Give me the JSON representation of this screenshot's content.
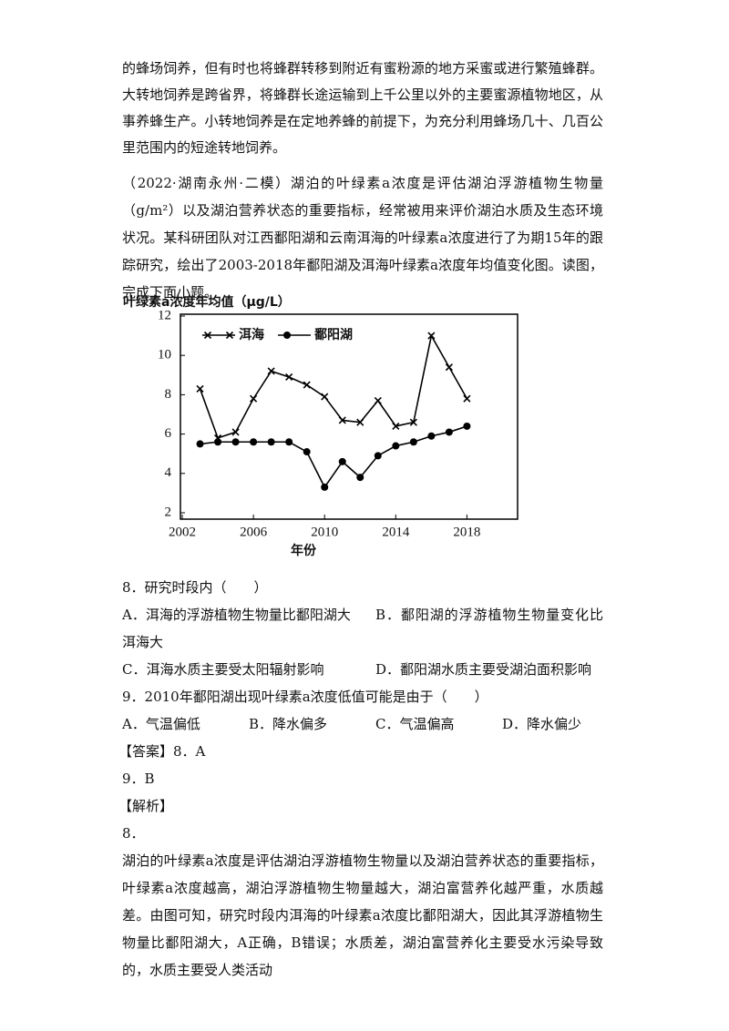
{
  "paragraphs": [
    "的蜂场饲养，但有时也将蜂群转移到附近有蜜粉源的地方采蜜或进行繁殖蜂群。大转地饲养是跨省界，将蜂群长途运输到上千公里以外的主要蜜源植物地区，从事养蜂生产。小转地饲养是在定地养蜂的前提下，为充分利用蜂场几十、几百公里范围内的短途转地饲养。",
    "（2022·湖南永州·二模）湖泊的叶绿素a浓度是评估湖泊浮游植物生物量（g/m²）以及湖泊营养状态的重要指标，经常被用来评价湖泊水质及生态环境状况。某科研团队对江西鄱阳湖和云南洱海的叶绿素a浓度进行了为期15年的跟踪研究，绘出了2003-2018年鄱阳湖及洱海叶绿素a浓度年均值变化图。读图，完成下面小题。"
  ],
  "chart_data": {
    "type": "line",
    "y_label": "叶绿素a浓度年均值（μg/L）",
    "x_label": "年份",
    "x": [
      2003,
      2004,
      2005,
      2006,
      2007,
      2008,
      2009,
      2010,
      2011,
      2012,
      2013,
      2014,
      2015,
      2016,
      2017,
      2018
    ],
    "series": [
      {
        "name": "洱海",
        "color": "#000000",
        "marker": "x",
        "values": [
          8.3,
          5.8,
          6.1,
          7.8,
          9.2,
          8.9,
          8.5,
          7.9,
          6.7,
          6.6,
          7.7,
          6.4,
          6.6,
          11.0,
          9.4,
          7.8
        ]
      },
      {
        "name": "鄱阳湖",
        "color": "#000000",
        "marker": "circle",
        "values": [
          5.5,
          5.6,
          5.6,
          5.6,
          5.6,
          5.6,
          5.1,
          3.3,
          4.6,
          3.8,
          4.9,
          5.4,
          5.6,
          5.9,
          6.1,
          6.4
        ]
      }
    ],
    "xlim": [
      2002,
      2021
    ],
    "xticks": [
      2002,
      2006,
      2010,
      2014,
      2018
    ],
    "ylim": [
      2,
      12
    ],
    "yticks": [
      2,
      4,
      6,
      8,
      10,
      12
    ],
    "legend": "upper left",
    "grid": false
  },
  "questions": [
    {
      "stem": "8．研究时段内（　　）",
      "options": [
        "A．洱海的浮游植物生物量比鄱阳湖大",
        "B．鄱阳湖的浮游植物生物量变化比洱海大",
        "C．洱海水质主要受太阳辐射影响",
        "D．鄱阳湖水质主要受湖泊面积影响"
      ]
    },
    {
      "stem": "9．2010年鄱阳湖出现叶绿素a浓度低值可能是由于（　　）",
      "options": [
        "A．气温偏低",
        "B．降水偏多",
        "C．气温偏高",
        "D．降水偏少"
      ]
    }
  ],
  "answer": {
    "label": "【答案】",
    "lines": [
      "8．A",
      "9．B"
    ]
  },
  "analysis": {
    "label": "【解析】",
    "number": "8．",
    "text": "湖泊的叶绿素a浓度是评估湖泊浮游植物生物量以及湖泊营养状态的重要指标，叶绿素a浓度越高，湖泊浮游植物生物量越大，湖泊富营养化越严重，水质越差。由图可知，研究时段内洱海的叶绿素a浓度比鄱阳湖大，因此其浮游植物生物量比鄱阳湖大，A正确，B错误；水质差，湖泊富营养化主要受水污染导致的，水质主要受人类活动"
  }
}
